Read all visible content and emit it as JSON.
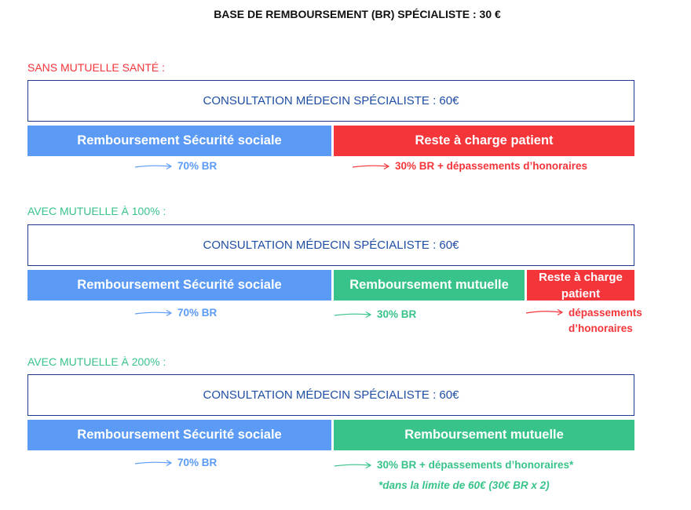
{
  "title": "BASE DE REMBOURSEMENT (BR) SPÉCIALISTE : 30 €",
  "colors": {
    "blue": "#5b9bf6",
    "red": "#f4353a",
    "green": "#38c38a",
    "navy": "#1f4ea3"
  },
  "sections": [
    {
      "label": "SANS MUTUELLE SANTÉ :",
      "consultation": "CONSULTATION MÉDECIN SPÉCIALISTE : 60€",
      "bars": [
        "Remboursement Sécurité sociale",
        "Reste à charge patient"
      ],
      "annotations": [
        "70% BR",
        "30% BR + dépassements d’honoraires"
      ]
    },
    {
      "label": "AVEC MUTUELLE À 100% :",
      "consultation": "CONSULTATION MÉDECIN SPÉCIALISTE : 60€",
      "bars": [
        "Remboursement Sécurité sociale",
        "Remboursement mutuelle",
        "Reste à charge patient"
      ],
      "annotations": [
        "70% BR",
        "30% BR",
        "dépassements d’honoraires"
      ]
    },
    {
      "label": "AVEC MUTUELLE À 200% :",
      "consultation": "CONSULTATION MÉDECIN SPÉCIALISTE : 60€",
      "bars": [
        "Remboursement Sécurité sociale",
        "Remboursement mutuelle"
      ],
      "annotations": [
        "70% BR",
        "30% BR + dépassements d’honoraires*"
      ],
      "note": "*dans la limite de 60€ (30€ BR x 2)"
    }
  ]
}
